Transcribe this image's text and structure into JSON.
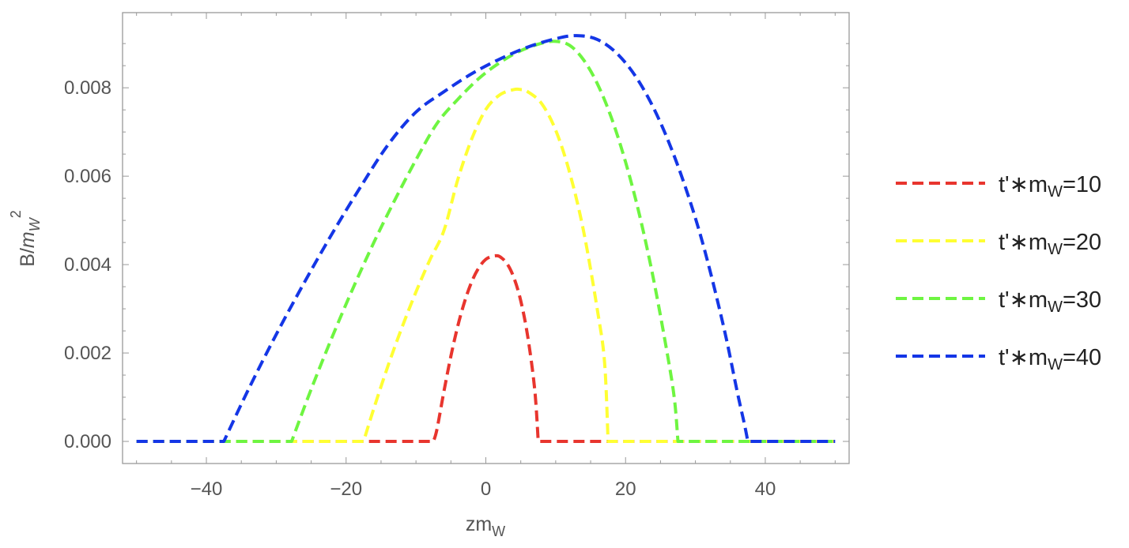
{
  "chart_data": {
    "type": "line",
    "xlabel": {
      "base": "zm",
      "sub": "W"
    },
    "ylabel": {
      "base": "B/",
      "var": "m",
      "sub": "W",
      "sup": "2"
    },
    "xlim": [
      -52,
      52
    ],
    "ylim": [
      -0.0005,
      0.0097
    ],
    "xticks": [
      -40,
      -20,
      0,
      20,
      40
    ],
    "xtick_labels": [
      "−40",
      "−20",
      "0",
      "20",
      "40"
    ],
    "yticks": [
      0.0,
      0.002,
      0.004,
      0.006,
      0.008
    ],
    "ytick_labels": [
      "0.000",
      "0.002",
      "0.004",
      "0.006",
      "0.008"
    ],
    "grid": false,
    "legend_position": "right",
    "series": [
      {
        "label": {
          "prefix": "t'∗m",
          "sub": "W",
          "suffix": "=10"
        },
        "color": "#e8352e",
        "x": [
          -50,
          -7.5,
          -7,
          -6,
          -5,
          -4,
          -3,
          -2,
          -1,
          0,
          1,
          1.5,
          2,
          3,
          4,
          5,
          6,
          7,
          7.5,
          50
        ],
        "y": [
          0.0,
          0.0,
          0.00027,
          0.00113,
          0.00193,
          0.00262,
          0.00318,
          0.00362,
          0.00393,
          0.00412,
          0.00419,
          0.0042,
          0.00418,
          0.00403,
          0.00371,
          0.00318,
          0.00237,
          0.00117,
          0.0,
          0.0
        ]
      },
      {
        "label": {
          "prefix": "t'∗m",
          "sub": "W",
          "suffix": "=20"
        },
        "color": "#ffff33",
        "x": [
          -50,
          -17.5,
          -16,
          -14,
          -12,
          -10,
          -8,
          -6,
          -4,
          -2,
          0,
          2,
          4,
          5,
          6,
          8,
          10,
          12,
          14,
          16,
          17,
          17.5,
          50
        ],
        "y": [
          0.0,
          0.0,
          0.00076,
          0.00171,
          0.00258,
          0.00338,
          0.00411,
          0.00477,
          0.00593,
          0.00685,
          0.00751,
          0.00784,
          0.00796,
          0.00796,
          0.00791,
          0.00764,
          0.00704,
          0.00608,
          0.00475,
          0.00294,
          0.00178,
          0.0,
          0.0
        ]
      },
      {
        "label": {
          "prefix": "t'∗m",
          "sub": "W",
          "suffix": "=30"
        },
        "color": "#6ef541",
        "x": [
          -50,
          -27.8,
          -25,
          -22,
          -19,
          -16,
          -13,
          -10,
          -7,
          -4,
          -1,
          2,
          5,
          8,
          10,
          12,
          14,
          16,
          18,
          20,
          22,
          24,
          26,
          27,
          27.5,
          50
        ],
        "y": [
          0.0,
          0.0,
          0.00118,
          0.00236,
          0.00347,
          0.00451,
          0.00547,
          0.00637,
          0.00719,
          0.00774,
          0.00821,
          0.00857,
          0.00884,
          0.00901,
          0.00905,
          0.00896,
          0.00863,
          0.00808,
          0.00731,
          0.00632,
          0.00512,
          0.00367,
          0.00196,
          0.00095,
          0.0,
          0.0
        ]
      },
      {
        "label": {
          "prefix": "t'∗m",
          "sub": "W",
          "suffix": "=40"
        },
        "color": "#1436e6",
        "x": [
          -50,
          -37.5,
          -34,
          -30,
          -26,
          -22,
          -18,
          -14,
          -10,
          -6,
          -2,
          2,
          6,
          10,
          13,
          16,
          19,
          22,
          25,
          28,
          31,
          34,
          36,
          37,
          37.5,
          50
        ],
        "y": [
          0.0,
          0.0,
          0.00117,
          0.00242,
          0.00359,
          0.0047,
          0.00574,
          0.00671,
          0.00745,
          0.00791,
          0.00832,
          0.00865,
          0.00892,
          0.00911,
          0.00918,
          0.00909,
          0.00874,
          0.00812,
          0.00721,
          0.00601,
          0.00451,
          0.00262,
          0.00111,
          0.0004,
          0.0,
          0.0
        ]
      }
    ]
  }
}
